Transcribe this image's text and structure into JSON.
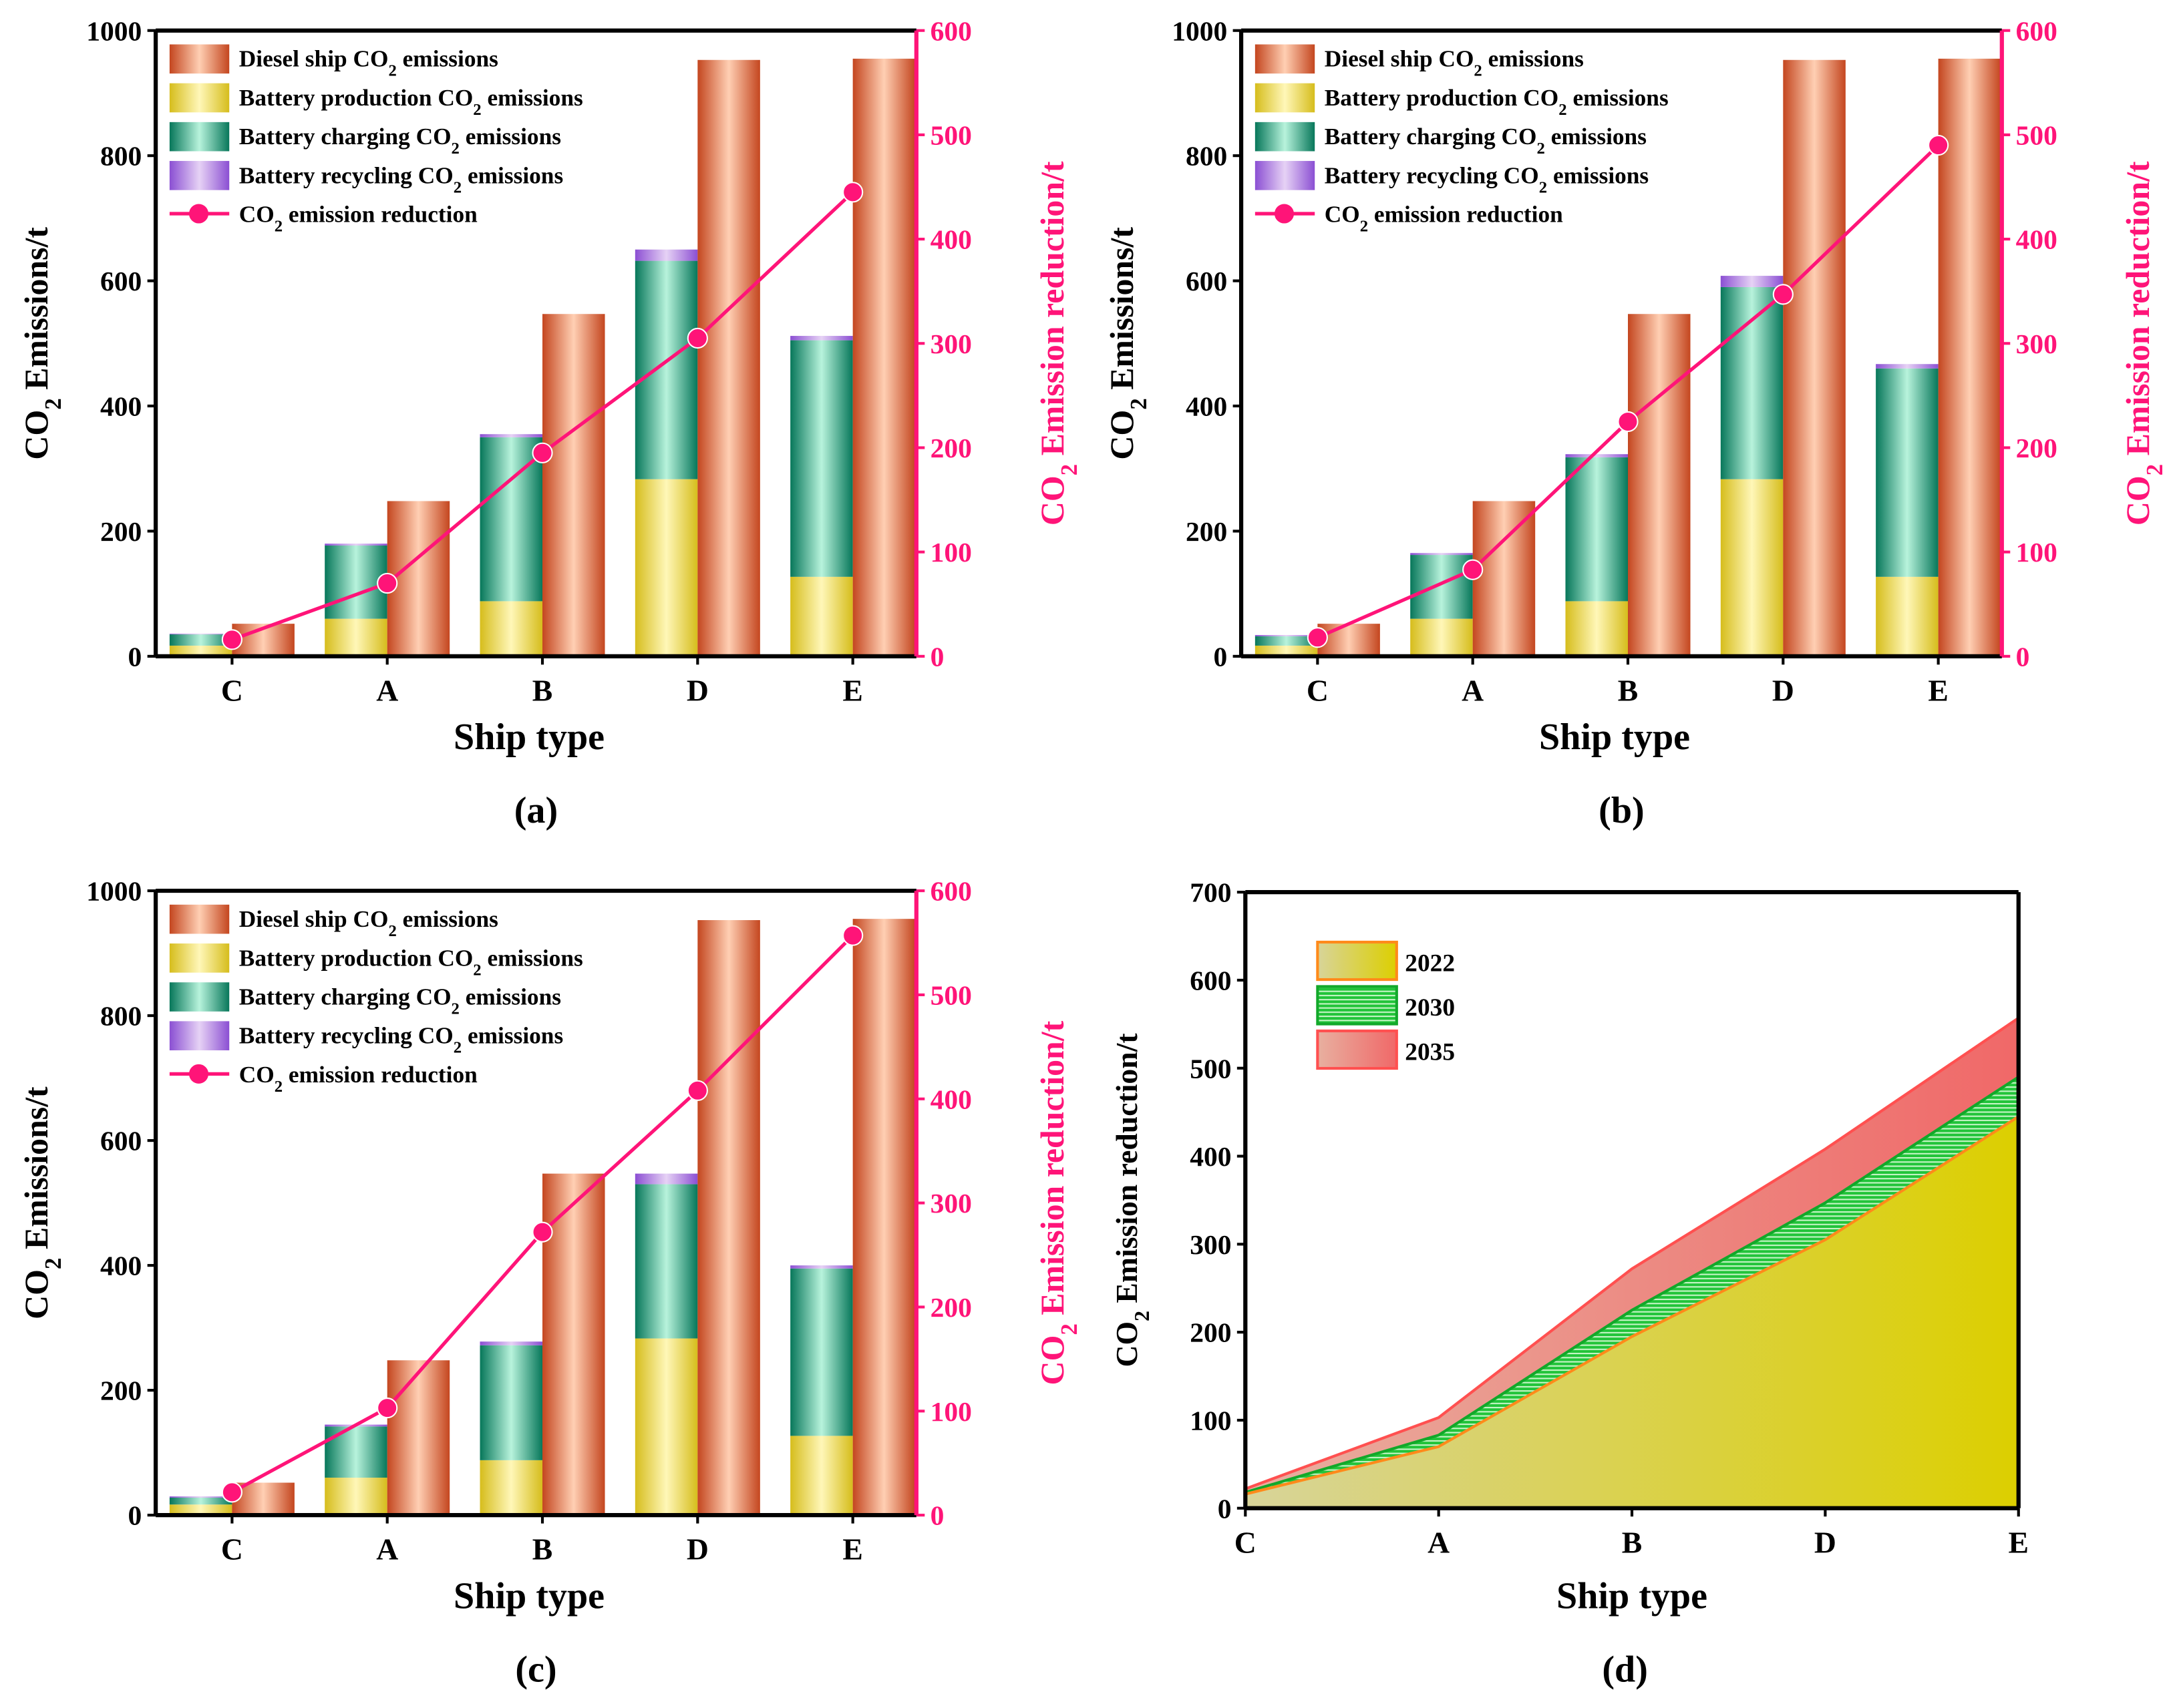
{
  "colors": {
    "diesel": [
      "#c4461f",
      "#ffcfb3"
    ],
    "production": [
      "#d6bd1c",
      "#fff7b8"
    ],
    "charging": [
      "#07775a",
      "#b8f3dc"
    ],
    "recycling": [
      "#8b4fd3",
      "#e6d2f5"
    ],
    "reduction": "#ff1478",
    "area2022": [
      "#d8d49a",
      "#dccf00"
    ],
    "area2030": "#22c43a",
    "area2035": [
      "#e8b0a0",
      "#f06868"
    ]
  },
  "chart_data": [
    {
      "type": "bar",
      "panel_label": "(a)",
      "categories": [
        "C",
        "A",
        "B",
        "D",
        "E"
      ],
      "xlabel": "Ship type",
      "ylabel": "CO2 Emissions/t",
      "y2label": "CO2 Emission reduction/t",
      "ylim": [
        0,
        1000
      ],
      "yticks": [
        0,
        200,
        400,
        600,
        800,
        1000
      ],
      "y2lim": [
        0,
        600
      ],
      "y2ticks": [
        0,
        100,
        200,
        300,
        400,
        500,
        600
      ],
      "legend": [
        "Diesel ship CO2 emissions",
        "Battery production CO2 emissions",
        "Battery charging CO2 emissions",
        "Battery recycling CO2 emissions",
        "CO2 emission reduction"
      ],
      "legend_position": "top-left",
      "series": [
        {
          "name": "Diesel ship CO2 emissions",
          "values": [
            52,
            248,
            547,
            953,
            955
          ]
        },
        {
          "name": "Battery production CO2 emissions",
          "values": [
            17,
            60,
            88,
            283,
            127
          ]
        },
        {
          "name": "Battery charging CO2 emissions",
          "values": [
            18,
            117,
            262,
            349,
            378
          ]
        },
        {
          "name": "Battery recycling CO2 emissions",
          "values": [
            1,
            3,
            5,
            18,
            7
          ]
        },
        {
          "name": "CO2 emission reduction",
          "axis": "right",
          "values": [
            16,
            70,
            195,
            305,
            445
          ]
        }
      ]
    },
    {
      "type": "bar",
      "panel_label": "(b)",
      "categories": [
        "C",
        "A",
        "B",
        "D",
        "E"
      ],
      "xlabel": "Ship type",
      "ylabel": "CO2 Emissions/t",
      "y2label": "CO2 Emission reduction/t",
      "ylim": [
        0,
        1000
      ],
      "yticks": [
        0,
        200,
        400,
        600,
        800,
        1000
      ],
      "y2lim": [
        0,
        600
      ],
      "y2ticks": [
        0,
        100,
        200,
        300,
        400,
        500,
        600
      ],
      "legend": [
        "Diesel ship CO2 emissions",
        "Battery production CO2 emissions",
        "Battery charging CO2 emissions",
        "Battery recycling CO2 emissions",
        "CO2 emission reduction"
      ],
      "legend_position": "top-left",
      "series": [
        {
          "name": "Diesel ship CO2 emissions",
          "values": [
            52,
            248,
            547,
            953,
            955
          ]
        },
        {
          "name": "Battery production CO2 emissions",
          "values": [
            17,
            60,
            88,
            283,
            127
          ]
        },
        {
          "name": "Battery charging CO2 emissions",
          "values": [
            15,
            102,
            230,
            307,
            333
          ]
        },
        {
          "name": "Battery recycling CO2 emissions",
          "values": [
            2,
            3,
            5,
            18,
            7
          ]
        },
        {
          "name": "CO2 emission reduction",
          "axis": "right",
          "values": [
            18,
            83,
            225,
            347,
            490
          ]
        }
      ]
    },
    {
      "type": "bar",
      "panel_label": "(c)",
      "categories": [
        "C",
        "A",
        "B",
        "D",
        "E"
      ],
      "xlabel": "Ship type",
      "ylabel": "CO2 Emissions/t",
      "y2label": "CO2 Emission reduction/t",
      "ylim": [
        0,
        1000
      ],
      "yticks": [
        0,
        200,
        400,
        600,
        800,
        1000
      ],
      "y2lim": [
        0,
        600
      ],
      "y2ticks": [
        0,
        100,
        200,
        300,
        400,
        500,
        600
      ],
      "legend": [
        "Diesel ship CO2 emissions",
        "Battery production CO2 emissions",
        "Battery charging CO2 emissions",
        "Battery recycling CO2 emissions",
        "CO2 emission reduction"
      ],
      "legend_position": "top-left",
      "series": [
        {
          "name": "Diesel ship CO2 emissions",
          "values": [
            52,
            248,
            547,
            953,
            955
          ]
        },
        {
          "name": "Battery production CO2 emissions",
          "values": [
            17,
            60,
            88,
            283,
            127
          ]
        },
        {
          "name": "Battery charging CO2 emissions",
          "values": [
            11,
            82,
            184,
            247,
            268
          ]
        },
        {
          "name": "Battery recycling CO2 emissions",
          "values": [
            2,
            3,
            6,
            17,
            5
          ]
        },
        {
          "name": "CO2 emission reduction",
          "axis": "right",
          "values": [
            22,
            103,
            272,
            408,
            557
          ]
        }
      ]
    },
    {
      "type": "area",
      "panel_label": "(d)",
      "categories": [
        "C",
        "A",
        "B",
        "D",
        "E"
      ],
      "xlabel": "Ship type",
      "ylabel": "CO2 Emission reduction/t",
      "ylim": [
        0,
        700
      ],
      "yticks": [
        0,
        100,
        200,
        300,
        400,
        500,
        600,
        700
      ],
      "legend_position": "top-left",
      "series": [
        {
          "name": "2022",
          "values": [
            16,
            70,
            195,
            305,
            445
          ]
        },
        {
          "name": "2030",
          "values": [
            18,
            83,
            225,
            347,
            490
          ]
        },
        {
          "name": "2035",
          "values": [
            22,
            103,
            272,
            408,
            557
          ]
        }
      ]
    }
  ]
}
